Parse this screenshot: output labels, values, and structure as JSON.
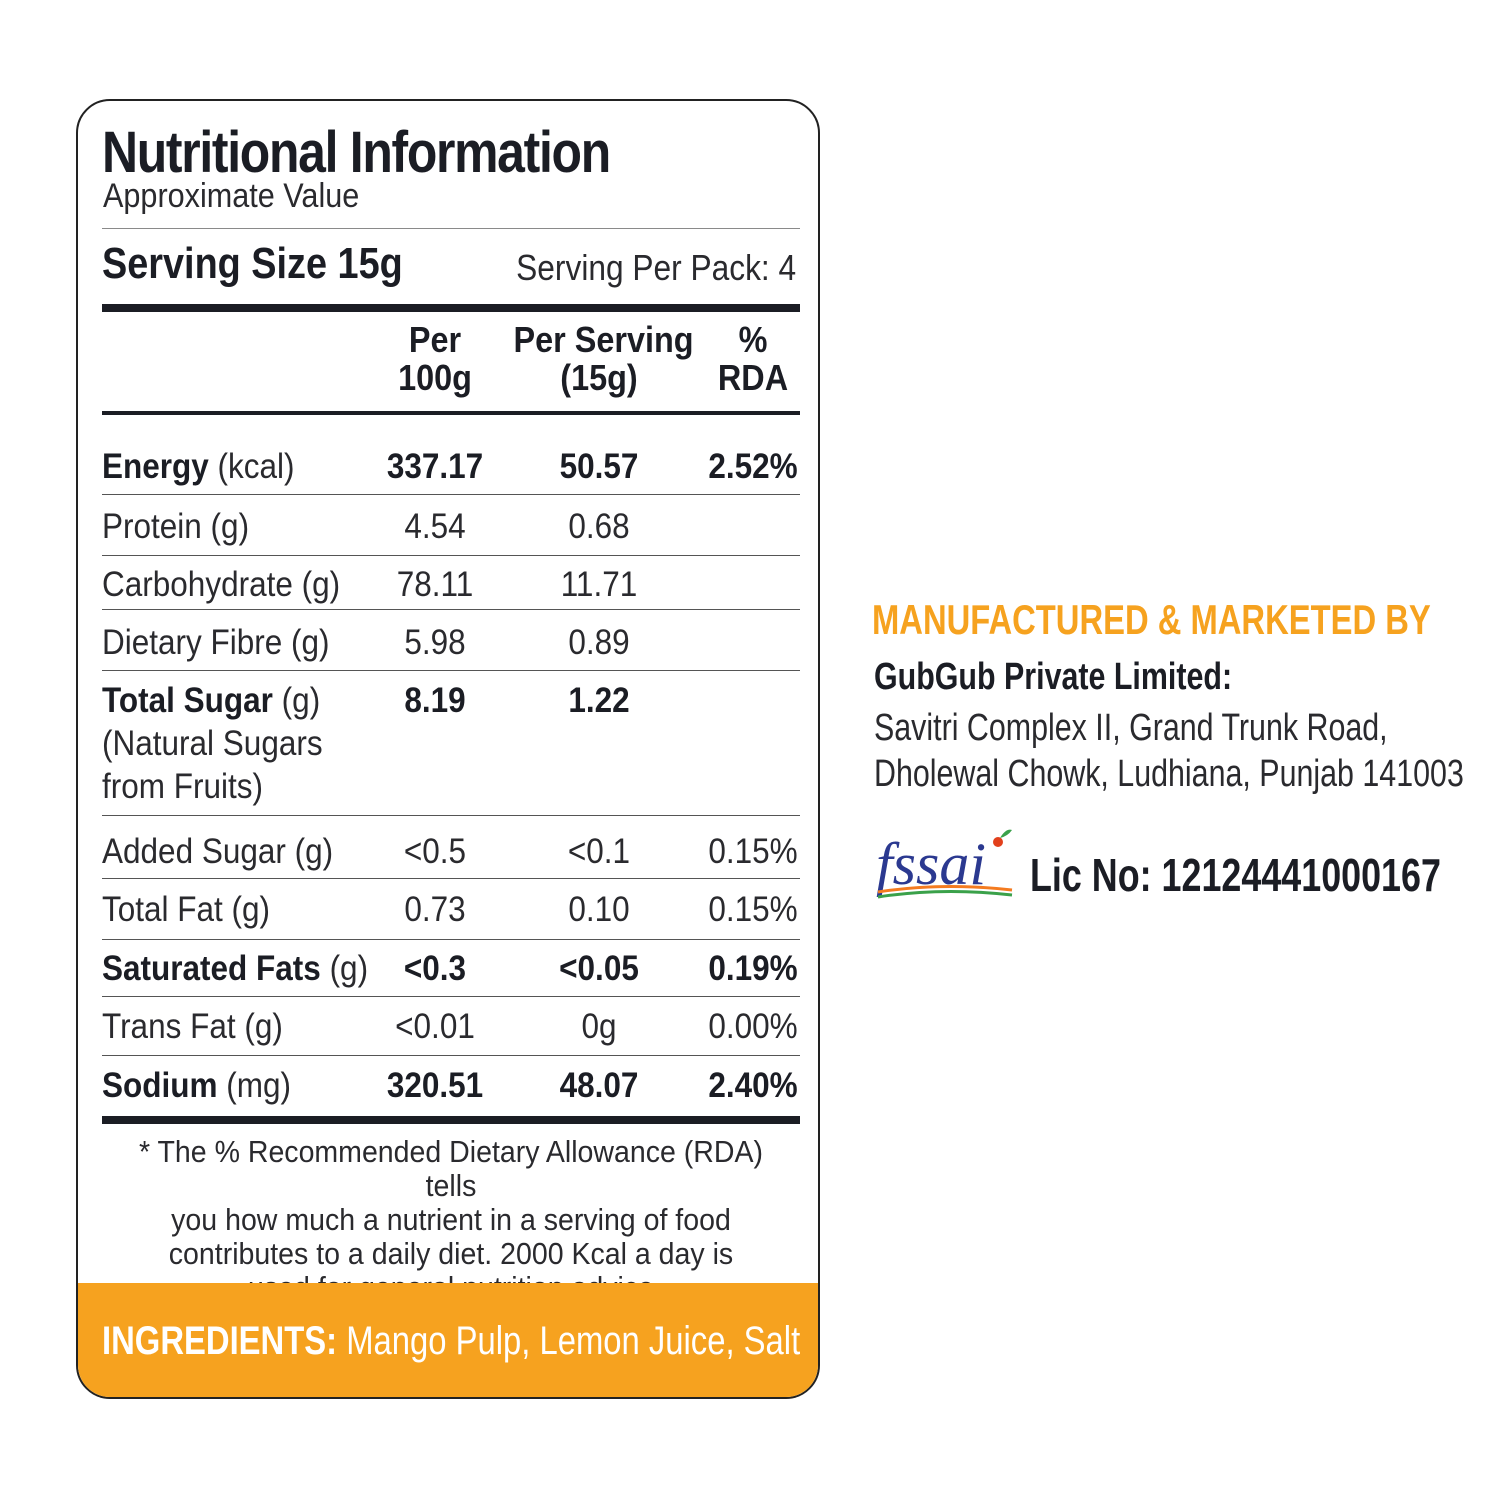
{
  "label": {
    "title": "Nutritional Information",
    "subtitle": "Approximate Value",
    "serving_size": "Serving Size 15g",
    "serving_per_pack": "Serving Per Pack: 4",
    "headers": {
      "per100_line1": "Per",
      "per100_line2": "100g",
      "perserv_line1": "Per Serving",
      "perserv_line2": "(15g)",
      "rda_line1": "%",
      "rda_line2": "RDA"
    },
    "rows": [
      {
        "name": "Energy",
        "unit": " (kcal)",
        "per100": "337.17",
        "perserv": "50.57",
        "rda": "2.52%"
      },
      {
        "name": "Protein (g)",
        "unit": "",
        "per100": "4.54",
        "perserv": "0.68",
        "rda": ""
      },
      {
        "name": "Carbohydrate (g)",
        "unit": "",
        "per100": "78.11",
        "perserv": "11.71",
        "rda": ""
      },
      {
        "name": "Dietary Fibre (g)",
        "unit": "",
        "per100": "5.98",
        "perserv": "0.89",
        "rda": ""
      },
      {
        "name": "Total Sugar",
        "unit": " (g)",
        "extra1": "(Natural Sugars",
        "extra2": "from Fruits)",
        "per100": "8.19",
        "perserv": "1.22",
        "rda": ""
      },
      {
        "name": "Added Sugar (g)",
        "unit": "",
        "per100": "<0.5",
        "perserv": "<0.1",
        "rda": "0.15%"
      },
      {
        "name": "Total Fat (g)",
        "unit": "",
        "per100": "0.73",
        "perserv": "0.10",
        "rda": "0.15%"
      },
      {
        "name": "Saturated Fats",
        "unit": " (g)",
        "per100": "<0.3",
        "perserv": "<0.05",
        "rda": "0.19%"
      },
      {
        "name": "Trans Fat (g)",
        "unit": "",
        "per100": "<0.01",
        "perserv": "0g",
        "rda": "0.00%"
      },
      {
        "name": "Sodium",
        "unit": " (mg)",
        "per100": "320.51",
        "perserv": "48.07",
        "rda": "2.40%"
      }
    ],
    "footnote_line1": "* The %  Recommended Dietary Allowance (RDA) tells",
    "footnote_line2": "you how much a nutrient in a serving of food",
    "footnote_line3": "contributes to a daily diet. 2000 Kcal a day is",
    "footnote_line4": "used for general nutrition advice",
    "ingredients_label": "INGREDIENTS:",
    "ingredients_text": " Mango Pulp, Lemon Juice, Salt"
  },
  "manufacturer": {
    "heading": "MANUFACTURED & MARKETED BY",
    "name": "GubGub Private Limited:",
    "address_line1": "Savitri Complex II, Grand Trunk Road,",
    "address_line2": "Dholewal Chowk, Ludhiana, Punjab 141003",
    "logo_text": "fssai",
    "license": "Lic No: 12124441000167"
  },
  "colors": {
    "accent": "#f6a21f",
    "text": "#1b1d24"
  }
}
